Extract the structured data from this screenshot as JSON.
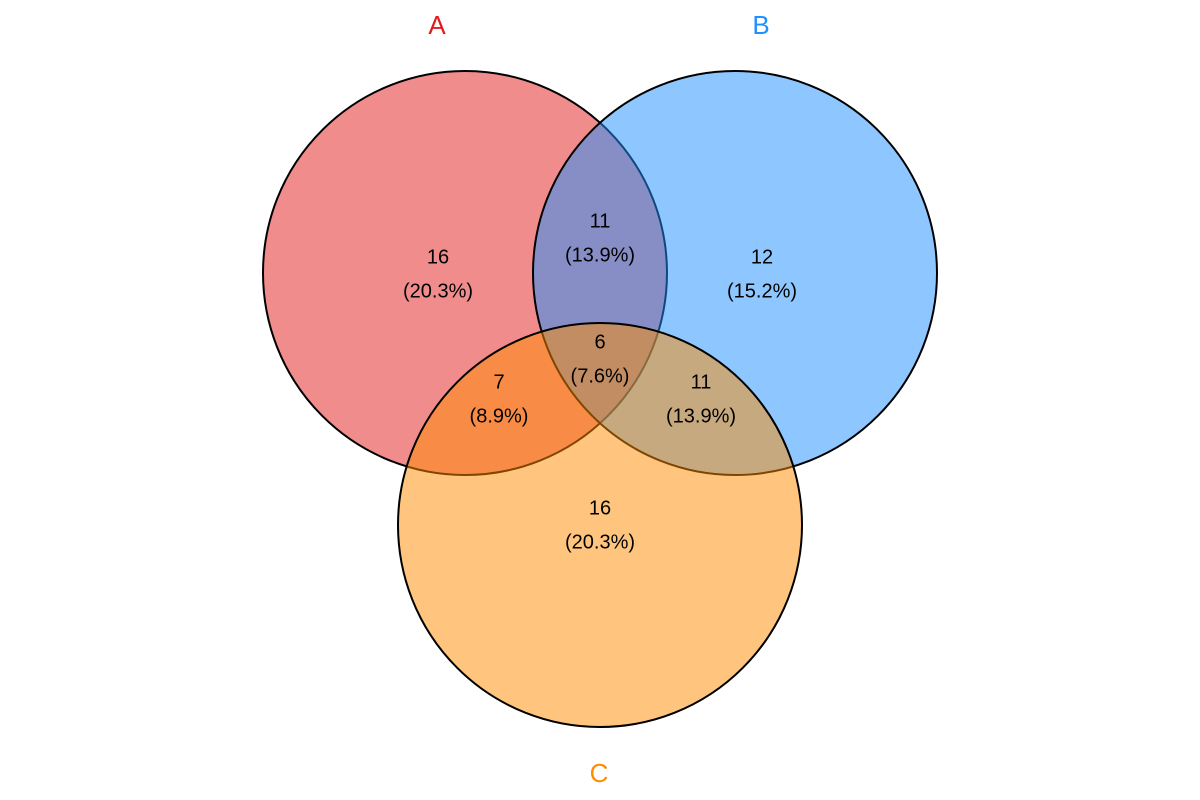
{
  "chart_data": {
    "type": "venn",
    "series": [
      {
        "name": "A",
        "color": "#e41a1c"
      },
      {
        "name": "B",
        "color": "#1e90ff"
      },
      {
        "name": "C",
        "color": "#ff8c00"
      }
    ],
    "values": [
      16,
      12,
      16,
      11,
      7,
      11,
      6
    ],
    "shares": [
      20.3,
      15.2,
      20.3,
      13.9,
      8.9,
      13.9,
      7.6
    ],
    "share_labels": [
      "(20.3%)",
      "(15.2%)",
      "(20.3%)",
      "(13.9%)",
      "(8.9%)",
      "(13.9%)",
      "(7.6%)"
    ]
  }
}
